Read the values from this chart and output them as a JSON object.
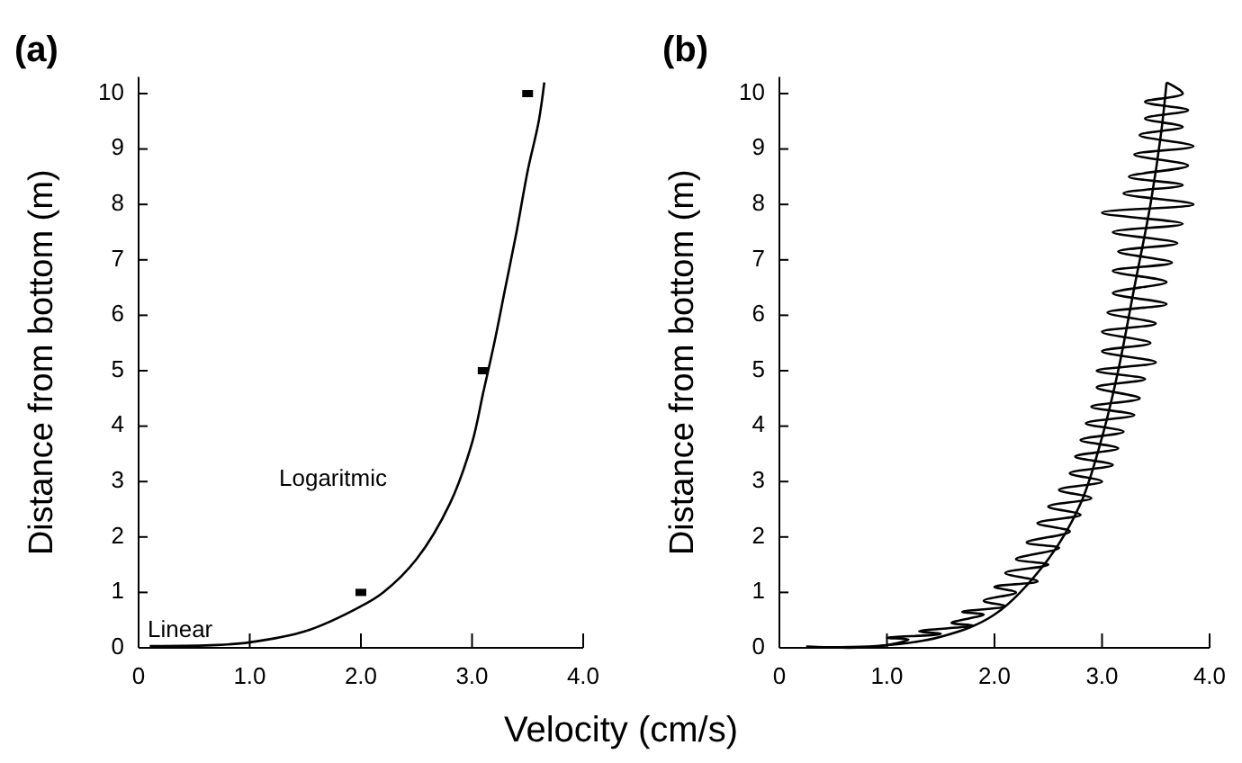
{
  "chart_data": [
    {
      "type": "line",
      "title": "(a)",
      "xlabel": "Velocity (cm/s)",
      "ylabel": "Distance from bottom (m)",
      "xlim": [
        0,
        4.0
      ],
      "ylim": [
        0,
        10.3
      ],
      "xticks": [
        0,
        {
          "value": 1,
          "label": "1.0"
        },
        {
          "value": 2,
          "label": "2.0"
        },
        {
          "value": 3,
          "label": "3.0"
        },
        {
          "value": 4,
          "label": "4.0"
        }
      ],
      "yticks": [
        0,
        1,
        2,
        3,
        4,
        5,
        6,
        7,
        8,
        9,
        10
      ],
      "series": [
        {
          "color": "#000000",
          "x": [
            0.1,
            0.7,
            1.0,
            1.5,
            2.0,
            2.2,
            2.5,
            2.8,
            3.0,
            3.1,
            3.2,
            3.3,
            3.4,
            3.5,
            3.6,
            3.65
          ],
          "values": [
            0.03,
            0.05,
            0.1,
            0.3,
            0.75,
            1.0,
            1.6,
            2.6,
            3.7,
            4.6,
            5.5,
            6.5,
            7.5,
            8.6,
            9.5,
            10.2
          ]
        },
        {
          "type": "scatter",
          "color": "#000000",
          "marker": "square",
          "x": [
            2.0,
            3.1,
            3.5
          ],
          "values": [
            1.0,
            5.0,
            10.0
          ]
        }
      ],
      "annotations": [
        "Linear",
        "Logaritmic"
      ]
    },
    {
      "type": "line",
      "title": "(b)",
      "ylabel": "Distance from bottom (m)",
      "xlim": [
        0,
        4.0
      ],
      "ylim": [
        0,
        10.3
      ],
      "xticks": [
        0,
        {
          "value": 1,
          "label": "1.0"
        },
        {
          "value": 2,
          "label": "2.0"
        },
        {
          "value": 3,
          "label": "3.0"
        },
        {
          "value": 4,
          "label": "4.0"
        }
      ],
      "yticks": [
        0,
        1,
        2,
        3,
        4,
        5,
        6,
        7,
        8,
        9,
        10
      ],
      "series": [
        {
          "color": "#000000",
          "x": [
            0.25,
            0.9,
            1.2,
            1.0,
            1.5,
            1.3,
            1.8,
            1.6,
            1.9,
            1.7,
            2.1,
            1.9,
            2.2,
            2.0,
            2.4,
            2.1,
            2.5,
            2.2,
            2.6,
            2.3,
            2.7,
            2.4,
            2.8,
            2.5,
            2.9,
            2.6,
            3.0,
            2.7,
            3.1,
            2.75,
            3.15,
            2.8,
            3.2,
            2.85,
            3.3,
            2.9,
            3.35,
            2.95,
            3.4,
            2.95,
            3.5,
            3.0,
            3.45,
            3.0,
            3.5,
            3.05,
            3.6,
            3.1,
            3.6,
            3.1,
            3.65,
            3.15,
            3.7,
            3.1,
            3.75,
            3.0,
            3.85,
            3.2,
            3.75,
            3.25,
            3.8,
            3.3,
            3.85,
            3.35,
            3.75,
            3.4,
            3.8,
            3.4,
            3.75,
            3.6
          ],
          "values": [
            0.02,
            0.02,
            0.15,
            0.18,
            0.25,
            0.3,
            0.4,
            0.45,
            0.6,
            0.65,
            0.75,
            0.85,
            1.0,
            1.1,
            1.2,
            1.35,
            1.5,
            1.6,
            1.8,
            1.9,
            2.1,
            2.25,
            2.4,
            2.55,
            2.7,
            2.85,
            3.0,
            3.15,
            3.3,
            3.45,
            3.6,
            3.75,
            3.9,
            4.05,
            4.2,
            4.35,
            4.5,
            4.7,
            4.85,
            5.0,
            5.15,
            5.35,
            5.5,
            5.7,
            5.85,
            6.05,
            6.2,
            6.4,
            6.6,
            6.8,
            6.95,
            7.15,
            7.3,
            7.5,
            7.65,
            7.85,
            8.0,
            8.2,
            8.35,
            8.5,
            8.7,
            8.9,
            9.05,
            9.25,
            9.4,
            9.55,
            9.7,
            9.85,
            10.0,
            10.2
          ]
        },
        {
          "color": "#000000",
          "x": [
            0.25,
            0.9,
            1.5,
            2.0,
            2.5,
            2.8,
            3.0,
            3.15,
            3.3,
            3.45,
            3.55,
            3.6
          ],
          "values": [
            0.02,
            0.03,
            0.2,
            0.6,
            1.6,
            2.6,
            3.8,
            5.0,
            6.5,
            8.0,
            9.3,
            10.2
          ]
        }
      ]
    }
  ]
}
